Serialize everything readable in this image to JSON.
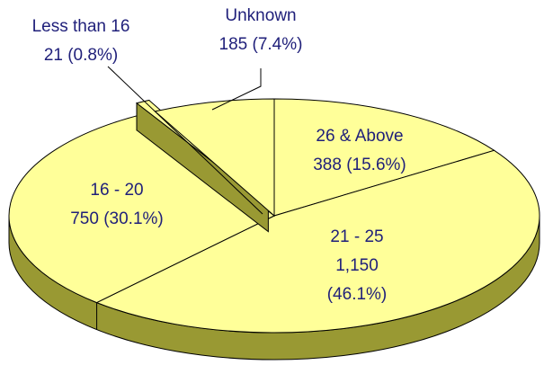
{
  "chart_data": {
    "type": "pie",
    "categories": [
      "26 & Above",
      "21 - 25",
      "16 - 20",
      "Less than 16",
      "Unknown"
    ],
    "values": [
      388,
      1150,
      750,
      21,
      185
    ],
    "value_labels": [
      "388 (15.6%)",
      "1,150 (46.1%)",
      "750 (30.1%)",
      "21 (0.8%)",
      "185 (7.4%)"
    ],
    "color": "#ffff99",
    "side_color": "#999933",
    "label_color": "#1f1f7a"
  }
}
